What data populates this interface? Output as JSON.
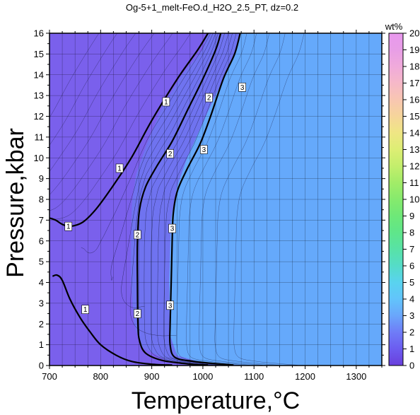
{
  "chart_data": {
    "type": "contour",
    "title": "Og-5+1_melt-FeO.d_H2O_2.5_PT, dz=0.2",
    "xlabel": "Temperature,°C",
    "ylabel": "Pressure,kbar",
    "xlim": [
      700,
      1350
    ],
    "ylim": [
      0,
      16
    ],
    "x_ticks": [
      700,
      800,
      900,
      1000,
      1100,
      1200,
      1300
    ],
    "y_ticks": [
      0,
      1,
      2,
      3,
      4,
      5,
      6,
      7,
      8,
      9,
      10,
      11,
      12,
      13,
      14,
      15,
      16
    ],
    "grid": true,
    "colorbar": {
      "label": "wt%",
      "min": 0,
      "max": 20,
      "ticks": [
        0,
        1,
        2,
        3,
        4,
        5,
        6,
        7,
        8,
        9,
        10,
        11,
        12,
        13,
        14,
        15,
        16,
        17,
        18,
        19,
        20
      ],
      "stops": [
        {
          "value": 0,
          "color": "#6a3fdc"
        },
        {
          "value": 1,
          "color": "#6c5cf0"
        },
        {
          "value": 2,
          "color": "#6f7cf7"
        },
        {
          "value": 3,
          "color": "#6aa6fb"
        },
        {
          "value": 4,
          "color": "#62c4fb"
        },
        {
          "value": 5,
          "color": "#59d3ef"
        },
        {
          "value": 6,
          "color": "#55dcc8"
        },
        {
          "value": 7,
          "color": "#58e2a6"
        },
        {
          "value": 8,
          "color": "#5fe68a"
        },
        {
          "value": 9,
          "color": "#6ee878"
        },
        {
          "value": 10,
          "color": "#86ea6d"
        },
        {
          "value": 11,
          "color": "#a2ec68"
        },
        {
          "value": 12,
          "color": "#c3ee6c"
        },
        {
          "value": 13,
          "color": "#ddee74"
        },
        {
          "value": 14,
          "color": "#efe684"
        },
        {
          "value": 15,
          "color": "#f6d59a"
        },
        {
          "value": 16,
          "color": "#f8c6b2"
        },
        {
          "value": 17,
          "color": "#f6b8c8"
        },
        {
          "value": 18,
          "color": "#f0aadb"
        },
        {
          "value": 19,
          "color": "#e89ee6"
        },
        {
          "value": 20,
          "color": "#e898ee"
        }
      ]
    },
    "regions": [
      {
        "name": "low",
        "color": "#7a60ec",
        "points": [
          [
            700,
            16
          ],
          [
            1010,
            16
          ],
          [
            1000,
            15.2
          ],
          [
            960,
            14
          ],
          [
            920,
            12.4
          ],
          [
            890,
            10.6
          ],
          [
            870,
            9.2
          ],
          [
            862,
            7.8
          ],
          [
            860,
            6
          ],
          [
            860,
            4
          ],
          [
            866,
            2
          ],
          [
            880,
            0.9
          ],
          [
            930,
            0.25
          ],
          [
            980,
            0.05
          ],
          [
            1000,
            0
          ],
          [
            700,
            0
          ]
        ]
      },
      {
        "name": "mid",
        "color": "#6f73f0",
        "points": [
          [
            1010,
            16
          ],
          [
            1075,
            16
          ],
          [
            1060,
            14.8
          ],
          [
            1010,
            12.2
          ],
          [
            970,
            10
          ],
          [
            950,
            8.6
          ],
          [
            938,
            7
          ],
          [
            935,
            4
          ],
          [
            936,
            1.5
          ],
          [
            950,
            0.5
          ],
          [
            985,
            0.25
          ],
          [
            1030,
            0.08
          ],
          [
            1110,
            0
          ],
          [
            1000,
            0
          ],
          [
            980,
            0.05
          ],
          [
            930,
            0.25
          ],
          [
            880,
            0.9
          ],
          [
            866,
            2
          ],
          [
            860,
            4
          ],
          [
            860,
            6
          ],
          [
            862,
            7.8
          ],
          [
            870,
            9.2
          ],
          [
            890,
            10.6
          ],
          [
            920,
            12.4
          ],
          [
            960,
            14
          ],
          [
            1000,
            15.2
          ]
        ]
      },
      {
        "name": "high",
        "color": "#65a9fb",
        "points": [
          [
            1075,
            16
          ],
          [
            1350,
            16
          ],
          [
            1350,
            0
          ],
          [
            1110,
            0
          ],
          [
            1030,
            0.08
          ],
          [
            985,
            0.25
          ],
          [
            950,
            0.5
          ],
          [
            936,
            1.5
          ],
          [
            935,
            4
          ],
          [
            938,
            7
          ],
          [
            950,
            8.6
          ],
          [
            970,
            10
          ],
          [
            1010,
            12.2
          ],
          [
            1060,
            14.8
          ]
        ]
      }
    ],
    "contours": [
      {
        "level": 1,
        "points": [
          [
            1010,
            16
          ],
          [
            990,
            15.2
          ],
          [
            950,
            13.8
          ],
          [
            900,
            11.8
          ],
          [
            860,
            10
          ],
          [
            820,
            8.5
          ],
          [
            790,
            7.5
          ],
          [
            765,
            6.9
          ],
          [
            740,
            6.7
          ],
          [
            725,
            6.8
          ],
          [
            712,
            7
          ],
          [
            700,
            7.1
          ]
        ]
      },
      {
        "level": 1,
        "points": [
          [
            706,
            4.3
          ],
          [
            715,
            4.35
          ],
          [
            725,
            4.1
          ],
          [
            740,
            3.2
          ],
          [
            760,
            2.3
          ],
          [
            780,
            1.6
          ],
          [
            800,
            1
          ],
          [
            830,
            0.5
          ],
          [
            860,
            0.2
          ],
          [
            900,
            0.06
          ],
          [
            940,
            0.02
          ]
        ]
      },
      {
        "level": 2,
        "points": [
          [
            1035,
            16
          ],
          [
            1025,
            15.2
          ],
          [
            1000,
            13.8
          ],
          [
            970,
            12.3
          ],
          [
            940,
            10.8
          ],
          [
            910,
            9.6
          ],
          [
            888,
            8.6
          ],
          [
            876,
            7.5
          ],
          [
            872,
            6
          ],
          [
            872,
            4
          ],
          [
            873,
            2
          ],
          [
            876,
            1.2
          ],
          [
            888,
            0.6
          ],
          [
            920,
            0.25
          ],
          [
            970,
            0.08
          ],
          [
            1010,
            0.02
          ]
        ]
      },
      {
        "level": 3,
        "points": [
          [
            1073,
            16
          ],
          [
            1062,
            15
          ],
          [
            1040,
            13.8
          ],
          [
            1015,
            12
          ],
          [
            995,
            10.7
          ],
          [
            970,
            9.5
          ],
          [
            950,
            8.4
          ],
          [
            942,
            7.3
          ],
          [
            940,
            6
          ],
          [
            938,
            4
          ],
          [
            936,
            2
          ],
          [
            936,
            1
          ],
          [
            945,
            0.4
          ],
          [
            980,
            0.2
          ],
          [
            1020,
            0.1
          ],
          [
            1060,
            0.02
          ]
        ]
      }
    ],
    "contour_labels": [
      {
        "text": "1",
        "x": 928,
        "y": 12.7
      },
      {
        "text": "1",
        "x": 837,
        "y": 9.5
      },
      {
        "text": "1",
        "x": 737,
        "y": 6.7
      },
      {
        "text": "1",
        "x": 770,
        "y": 2.7
      },
      {
        "text": "2",
        "x": 1012,
        "y": 12.9
      },
      {
        "text": "2",
        "x": 936,
        "y": 10.2
      },
      {
        "text": "2",
        "x": 872,
        "y": 6.3
      },
      {
        "text": "2",
        "x": 872,
        "y": 2.5
      },
      {
        "text": "3",
        "x": 1077,
        "y": 13.4
      },
      {
        "text": "3",
        "x": 1002,
        "y": 10.4
      },
      {
        "text": "3",
        "x": 940,
        "y": 6.6
      },
      {
        "text": "3",
        "x": 936,
        "y": 2.9
      }
    ]
  }
}
